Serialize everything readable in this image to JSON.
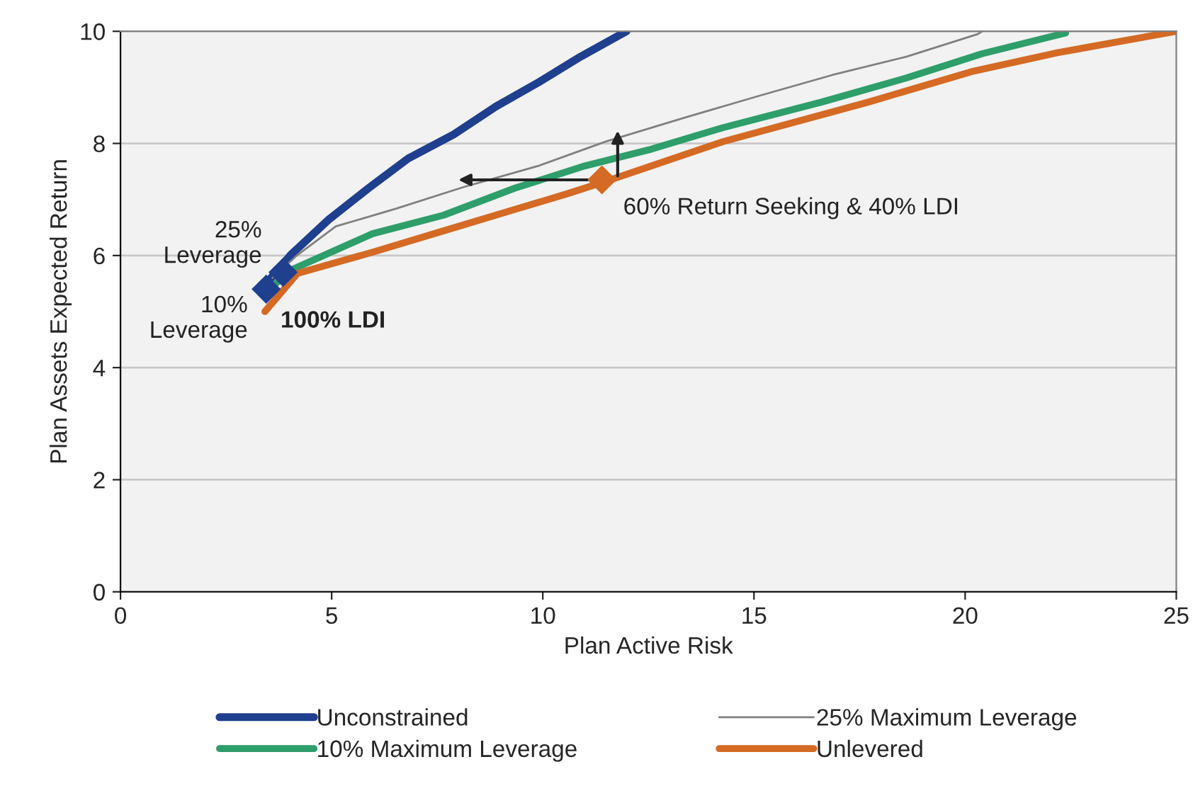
{
  "chart_data": {
    "type": "line",
    "xlabel": "Plan Active Risk",
    "ylabel": "Plan Assets Expected Return",
    "xlim": [
      0,
      25
    ],
    "xticks": [
      0,
      5,
      10,
      15,
      20,
      25
    ],
    "ylim": [
      0,
      10
    ],
    "yticks": [
      0,
      2,
      4,
      6,
      8,
      10
    ],
    "grid": "y",
    "legend": "bottom",
    "line_style": "solid",
    "series": [
      {
        "name": "Unconstrained",
        "color": "#1f3f8f",
        "x": [
          3.4,
          3.52,
          4.03,
          4.93,
          5.87,
          6.81,
          7.89,
          8.89,
          9.9,
          10.9,
          11.98
        ],
        "values": [
          5.35,
          5.56,
          6.01,
          6.64,
          7.2,
          7.73,
          8.16,
          8.66,
          9.09,
          9.55,
          10.0
        ]
      },
      {
        "name": "25% Maximum Leverage",
        "color": "#808080",
        "x": [
          3.6,
          4.19,
          5.1,
          6.54,
          8.12,
          9.9,
          11.48,
          13.36,
          15.17,
          16.85,
          18.62,
          20.3,
          20.4
        ],
        "values": [
          5.6,
          6.01,
          6.52,
          6.84,
          7.22,
          7.6,
          8.03,
          8.46,
          8.86,
          9.22,
          9.55,
          9.95,
          10.0
        ]
      },
      {
        "name": "10% Maximum Leverage",
        "color": "#2e9e6a",
        "x": [
          3.6,
          4.09,
          5.97,
          7.65,
          9.33,
          11.0,
          12.58,
          14.26,
          16.61,
          18.62,
          20.4,
          22.38
        ],
        "values": [
          5.45,
          5.76,
          6.39,
          6.72,
          7.2,
          7.6,
          7.9,
          8.28,
          8.74,
          9.17,
          9.6,
          9.97
        ]
      },
      {
        "name": "Unlevered",
        "color": "#d46a24",
        "x": [
          3.42,
          4.19,
          5.97,
          7.65,
          9.33,
          10.57,
          11.48,
          12.58,
          14.26,
          17.72,
          20.2,
          22.2,
          25.0
        ],
        "values": [
          5.0,
          5.68,
          6.06,
          6.44,
          6.82,
          7.1,
          7.32,
          7.6,
          8.03,
          8.74,
          9.29,
          9.62,
          10.0
        ]
      },
      {
        "type": "scatter",
        "marker": "diamond",
        "color": "#1f3f8f",
        "x": [
          3.45,
          3.85
        ],
        "values": [
          5.4,
          5.7
        ]
      },
      {
        "type": "scatter",
        "marker": "diamond",
        "color": "#d46a24",
        "x": [
          11.4
        ],
        "values": [
          7.35
        ]
      }
    ],
    "annotations": [
      {
        "text": "25%\nLeverage",
        "x": 3.85,
        "y": 5.7
      },
      {
        "text": "10%\nLeverage",
        "x": 3.45,
        "y": 5.4
      },
      {
        "text": "100% LDI",
        "x": 3.42,
        "y": 5.0
      },
      {
        "text": "60% Return Seeking & 40% LDI",
        "x": 11.4,
        "y": 7.35
      }
    ]
  }
}
